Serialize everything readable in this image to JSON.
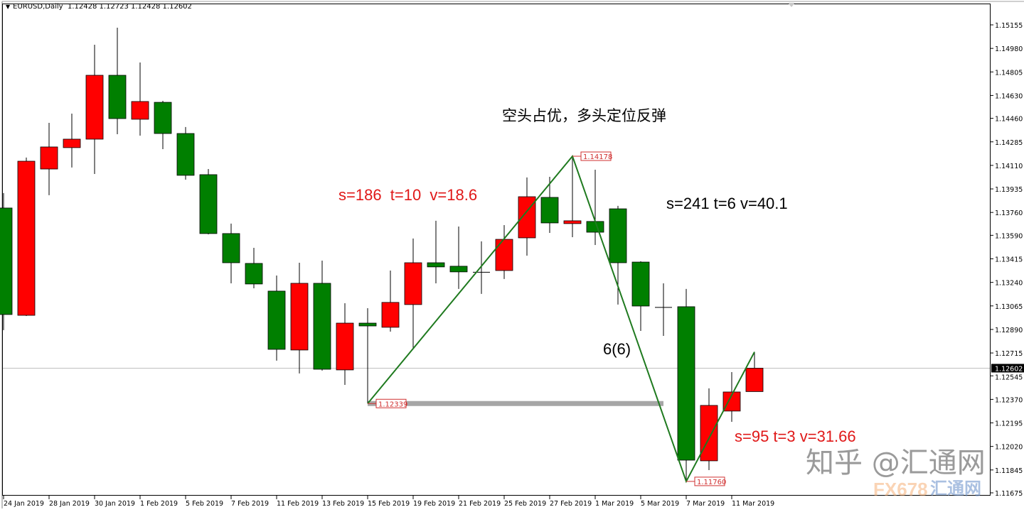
{
  "header": {
    "symbol": "EURUSD,Daily",
    "ohlc": "1.12428 1.12723 1.12428 1.12602"
  },
  "chart_data": {
    "type": "candlestick",
    "title": "EURUSD,Daily",
    "colors": {
      "bull": "#ff0000",
      "bear": "#007f00",
      "zigzag": "#1f7a1f",
      "support": "#a6a6a6",
      "price_line": "#c0c0c0"
    },
    "ylim": [
      1.11675,
      1.15155
    ],
    "y_ticks": [
      "1.15155",
      "1.14980",
      "1.14805",
      "1.14630",
      "1.14460",
      "1.14285",
      "1.14110",
      "1.13935",
      "1.13760",
      "1.13590",
      "1.13415",
      "1.13240",
      "1.13065",
      "1.12890",
      "1.12715",
      "1.12545",
      "1.12370",
      "1.12195",
      "1.12020",
      "1.11845",
      "1.11675"
    ],
    "x_labels": [
      {
        "idx": 0,
        "text": "24 Jan 2019"
      },
      {
        "idx": 2,
        "text": "28 Jan 2019"
      },
      {
        "idx": 4,
        "text": "30 Jan 2019"
      },
      {
        "idx": 6,
        "text": "1 Feb 2019"
      },
      {
        "idx": 8,
        "text": "5 Feb 2019"
      },
      {
        "idx": 10,
        "text": "7 Feb 2019"
      },
      {
        "idx": 12,
        "text": "11 Feb 2019"
      },
      {
        "idx": 14,
        "text": "13 Feb 2019"
      },
      {
        "idx": 16,
        "text": "15 Feb 2019"
      },
      {
        "idx": 18,
        "text": "19 Feb 2019"
      },
      {
        "idx": 20,
        "text": "21 Feb 2019"
      },
      {
        "idx": 22,
        "text": "25 Feb 2019"
      },
      {
        "idx": 24,
        "text": "27 Feb 2019"
      },
      {
        "idx": 26,
        "text": "1 Mar 2019"
      },
      {
        "idx": 28,
        "text": "5 Mar 2019"
      },
      {
        "idx": 30,
        "text": "7 Mar 2019"
      },
      {
        "idx": 32,
        "text": "11 Mar 2019"
      }
    ],
    "columns": [
      "date",
      "open",
      "high",
      "low",
      "close"
    ],
    "candles": [
      [
        "24 Jan 2019",
        1.13793,
        1.13904,
        1.12885,
        1.13001
      ],
      [
        "25 Jan 2019",
        1.12995,
        1.14168,
        1.1299,
        1.14141
      ],
      [
        "28 Jan 2019",
        1.14083,
        1.14426,
        1.13888,
        1.14247
      ],
      [
        "29 Jan 2019",
        1.14242,
        1.14495,
        1.14094,
        1.14305
      ],
      [
        "30 Jan 2019",
        1.14305,
        1.15007,
        1.14046,
        1.1478
      ],
      [
        "31 Jan 2019",
        1.1478,
        1.15134,
        1.14342,
        1.14458
      ],
      [
        "1 Feb 2019",
        1.14453,
        1.14875,
        1.14331,
        1.14585
      ],
      [
        "4 Feb 2019",
        1.14579,
        1.1459,
        1.14231,
        1.14347
      ],
      [
        "5 Feb 2019",
        1.14347,
        1.14395,
        1.14004,
        1.14036
      ],
      [
        "6 Feb 2019",
        1.14041,
        1.14083,
        1.13597,
        1.13603
      ],
      [
        "7 Feb 2019",
        1.13603,
        1.13677,
        1.13233,
        1.13386
      ],
      [
        "8 Feb 2019",
        1.13381,
        1.13497,
        1.13196,
        1.13228
      ],
      [
        "11 Feb 2019",
        1.13175,
        1.13291,
        1.12658,
        1.12742
      ],
      [
        "12 Feb 2019",
        1.12737,
        1.13386,
        1.12563,
        1.13233
      ],
      [
        "13 Feb 2019",
        1.13233,
        1.13402,
        1.12584,
        1.12594
      ],
      [
        "14 Feb 2019",
        1.12589,
        1.13085,
        1.12478,
        1.12937
      ],
      [
        "15 Feb 2019",
        1.12937,
        1.13048,
        1.12339,
        1.12916
      ],
      [
        "18 Feb 2019",
        1.12906,
        1.13328,
        1.12874,
        1.13091
      ],
      [
        "19 Feb 2019",
        1.13075,
        1.13566,
        1.12753,
        1.13386
      ],
      [
        "20 Feb 2019",
        1.13386,
        1.13698,
        1.13233,
        1.13355
      ],
      [
        "21 Feb 2019",
        1.1336,
        1.13655,
        1.13191,
        1.13318
      ],
      [
        "22 Feb 2019",
        1.13312,
        1.13545,
        1.13154,
        1.13315
      ],
      [
        "25 Feb 2019",
        1.13328,
        1.13666,
        1.13265,
        1.1356
      ],
      [
        "26 Feb 2019",
        1.13571,
        1.1402,
        1.13439,
        1.13877
      ],
      [
        "27 Feb 2019",
        1.13872,
        1.14025,
        1.13608,
        1.13682
      ],
      [
        "28 Feb 2019",
        1.13677,
        1.14178,
        1.13576,
        1.13698
      ],
      [
        "1 Mar 2019",
        1.13693,
        1.14078,
        1.13518,
        1.13613
      ],
      [
        "4 Mar 2019",
        1.13787,
        1.13809,
        1.13075,
        1.13386
      ],
      [
        "5 Mar 2019",
        1.13391,
        1.13397,
        1.12879,
        1.13064
      ],
      [
        "6 Mar 2019",
        1.13054,
        1.13233,
        1.12842,
        1.1305
      ],
      [
        "7 Mar 2019",
        1.13059,
        1.13191,
        1.1176,
        1.11918
      ],
      [
        "8 Mar 2019",
        1.11913,
        1.12452,
        1.11844,
        1.12325
      ],
      [
        "11 Mar 2019",
        1.12283,
        1.12573,
        1.12203,
        1.12425
      ],
      [
        "12 Mar 2019",
        1.12428,
        1.12723,
        1.12428,
        1.12602
      ]
    ],
    "current_price": "1.12602",
    "zigzag": [
      {
        "idx": 16,
        "price": 1.12339
      },
      {
        "idx": 25,
        "price": 1.14178
      },
      {
        "idx": 30,
        "price": 1.1176
      },
      {
        "idx": 33,
        "price": 1.12723
      }
    ],
    "support_line": {
      "price": 1.12339,
      "from_idx": 16,
      "to_idx": 29
    },
    "price_labels": [
      {
        "idx": 25,
        "price": 1.14178,
        "text": "1.14178"
      },
      {
        "idx": 16,
        "price": 1.12339,
        "text": "1.12339"
      },
      {
        "idx": 30,
        "price": 1.1176,
        "text": "1.11760"
      }
    ],
    "annotations": {
      "headline": "空头占优，多头定位反弹",
      "leg1": "s=186  t=10  v=18.6",
      "leg2": "s=241 t=6 v=40.1",
      "count": "6(6)",
      "leg3": "s=95 t=3 v=31.66"
    }
  },
  "watermark": {
    "text": "知乎 @汇通网",
    "logo": "FX678",
    "logo_cn": "汇通网"
  }
}
